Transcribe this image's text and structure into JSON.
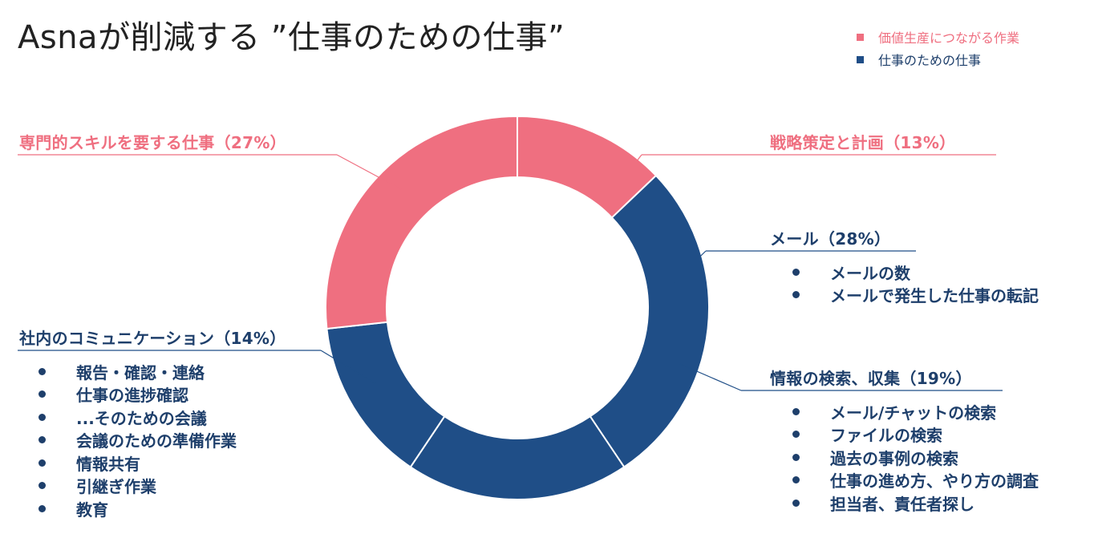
{
  "title": "Asnaが削減する ”仕事のための仕事”",
  "colors": {
    "pink": "#ef6f80",
    "navy": "#1f4e87",
    "text_navy": "#1e3f6b"
  },
  "legend": [
    {
      "label": "価値生産につながる作業",
      "color": "#ef6f80"
    },
    {
      "label": "仕事のための仕事",
      "color": "#1f4e87"
    }
  ],
  "chart_data": {
    "type": "pie",
    "categories": [
      "戦略策定と計画",
      "メール",
      "情報の検索、収集",
      "社内のコミュニケーション",
      "専門的スキルを要する仕事"
    ],
    "values": [
      13,
      28,
      19,
      14,
      27
    ],
    "series_groups": [
      "価値生産につながる作業",
      "仕事のための仕事",
      "仕事のための仕事",
      "仕事のための仕事",
      "価値生産につながる作業"
    ],
    "legend_placement": "top-right"
  },
  "callouts": {
    "strategy": {
      "label": "戦略策定と計画（13%）"
    },
    "skill": {
      "label": "専門的スキルを要する仕事（27%）"
    },
    "mail": {
      "label": "メール（28%）",
      "bullets": [
        "メールの数",
        "メールで発生した仕事の転記"
      ]
    },
    "info": {
      "label": "情報の検索、収集（19%）",
      "bullets": [
        "メール/チャットの検索",
        "ファイルの検索",
        "過去の事例の検索",
        "仕事の進め方、やり方の調査",
        "担当者、責任者探し"
      ]
    },
    "comm": {
      "label": "社内のコミュニケーション（14%）",
      "bullets": [
        "報告・確認・連絡",
        "仕事の進捗確認",
        "...そのための会議",
        "会議のための準備作業",
        "情報共有",
        "引継ぎ作業",
        "教育"
      ]
    }
  }
}
